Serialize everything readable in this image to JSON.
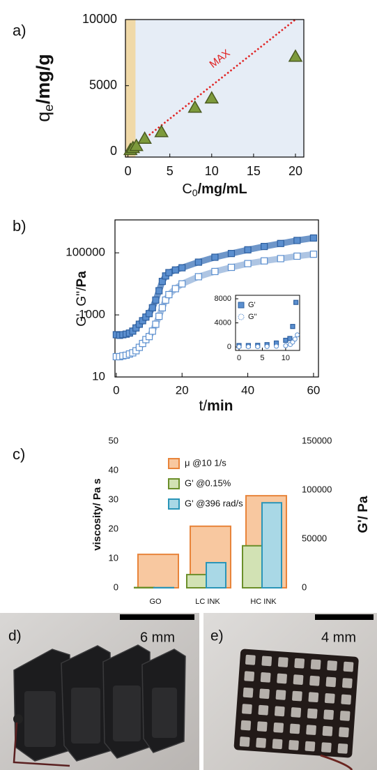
{
  "chart_data": [
    {
      "type": "scatter",
      "panel_label": "a)",
      "x_label": {
        "main": "C",
        "sub": "0",
        "unit": "/mg/mL"
      },
      "y_label": {
        "main": "q",
        "sub": "e",
        "unit": "/mg/g"
      },
      "x": [
        0.3,
        0.6,
        1,
        2,
        4,
        8,
        10,
        20
      ],
      "values": [
        150,
        300,
        450,
        1000,
        1500,
        3350,
        4050,
        7200
      ],
      "color": "#7d9a3c",
      "edge": "#4a5a20",
      "background": "#e6edf6",
      "shade": {
        "x": [
          -0.3,
          0.9
        ],
        "color": "#f0d9a8"
      },
      "max_line": {
        "text": "MAX",
        "x": [
          0,
          20
        ],
        "values": [
          0,
          10000
        ],
        "color": "#e02020"
      },
      "xlim": [
        -0.3,
        21
      ],
      "xticks": [
        0,
        5,
        10,
        15,
        20
      ],
      "ylim": [
        -400,
        10000
      ],
      "yticks": [
        0,
        5000,
        10000
      ]
    },
    {
      "type": "line",
      "panel_label": "b)",
      "log_y": true,
      "x_label": {
        "main": "t/",
        "unit": "min"
      },
      "y_label": {
        "main": "G', G''/",
        "unit": "Pa"
      },
      "x": [
        0,
        1,
        2,
        3,
        4,
        5,
        6,
        7,
        8,
        9,
        10,
        11,
        12,
        13,
        14,
        15,
        16,
        18,
        20,
        25,
        30,
        35,
        40,
        45,
        50,
        55,
        60
      ],
      "series": [
        {
          "color": "#5b8fcf",
          "filled": true,
          "values": [
            230,
            220,
            230,
            240,
            260,
            300,
            380,
            500,
            650,
            850,
            1100,
            1700,
            3000,
            6000,
            12000,
            18000,
            23000,
            28000,
            33000,
            50000,
            72000,
            95000,
            125000,
            160000,
            200000,
            250000,
            300000
          ]
        },
        {
          "color": "#5b8fcf",
          "filled": false,
          "values": [
            45,
            45,
            48,
            50,
            55,
            60,
            70,
            90,
            120,
            160,
            200,
            300,
            500,
            900,
            1700,
            3000,
            4500,
            7000,
            10000,
            17000,
            25000,
            34000,
            45000,
            55000,
            65000,
            78000,
            90000
          ]
        }
      ],
      "xlim": [
        -0.4,
        61.5
      ],
      "xticks": [
        0,
        20,
        40,
        60
      ],
      "ylim": [
        10,
        1150000
      ],
      "yticks": [
        10,
        1000,
        100000
      ]
    },
    {
      "type": "inset",
      "series": [
        {
          "name": "G'",
          "color": "#5b8fcf",
          "filled": true,
          "x": [
            0,
            2,
            4,
            6,
            8,
            10,
            10.9,
            11.5,
            12.2
          ],
          "values": [
            230,
            230,
            260,
            380,
            650,
            1100,
            1400,
            3400,
            7400
          ]
        },
        {
          "name": "G''",
          "color": "#5b8fcf",
          "filled": false,
          "x": [
            0,
            2,
            4,
            6,
            8,
            10,
            11,
            11.5,
            12,
            12.5
          ],
          "values": [
            45,
            48,
            55,
            70,
            120,
            200,
            400,
            800,
            1300,
            2000
          ]
        }
      ],
      "xlim": [
        -0.75,
        13
      ],
      "xticks": [
        0,
        5,
        10
      ],
      "ylim": [
        -580,
        8580
      ],
      "yticks": [
        0,
        4000,
        8000
      ]
    },
    {
      "type": "bar",
      "panel_label": "c)",
      "y_label": "viscosity/ Pa s",
      "y2_label": "G'/ Pa",
      "categories": [
        "GO",
        "LC INK",
        "HC INK"
      ],
      "series": [
        {
          "name": "μ @10 1/s",
          "color": "#f8c8a0",
          "edge": "#e8843a",
          "values": [
            11.4,
            21,
            31.4
          ]
        },
        {
          "name": "G' @0.15%",
          "color": "#d2e2b4",
          "edge": "#6b8f2a",
          "axis": "y2",
          "values": [
            300,
            13500,
            43000
          ]
        },
        {
          "name": "G' @396 rad/s",
          "color": "#a9d8e6",
          "edge": "#2a95b8",
          "axis": "y2",
          "values": [
            200,
            25700,
            87000
          ]
        }
      ],
      "ylim": [
        0,
        50
      ],
      "yticks": [
        0,
        10,
        20,
        30,
        40,
        50
      ],
      "y2lim": [
        0,
        150000
      ],
      "y2ticks": [
        0,
        50000,
        100000,
        150000
      ]
    }
  ],
  "photos": {
    "d": {
      "label": "d)",
      "scale": "6 mm"
    },
    "e": {
      "label": "e)",
      "scale": "4 mm"
    }
  }
}
